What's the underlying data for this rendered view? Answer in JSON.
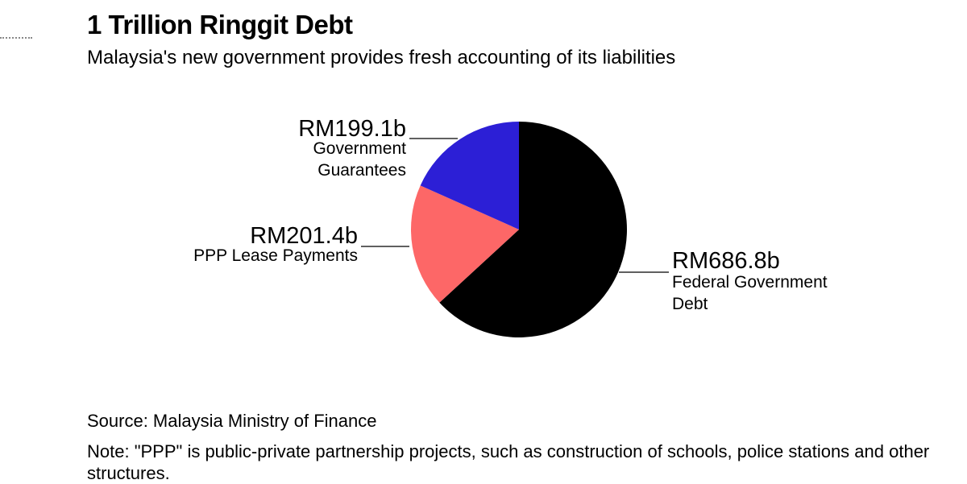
{
  "title": "1 Trillion Ringgit Debt",
  "subtitle": "Malaysia's new government provides fresh accounting of its liabilities",
  "source": "Source: Malaysia Ministry of Finance",
  "note": "Note: \"PPP\" is public-private partnership projects, such as construction of schools, police stations and other structures.",
  "chart_data": {
    "type": "pie",
    "unit": "RM billion",
    "slices": [
      {
        "label": "Federal Government Debt",
        "label_lines": [
          "Federal Government",
          "Debt"
        ],
        "value": 686.8,
        "value_label": "RM686.8b",
        "color": "#000000",
        "label_side": "right"
      },
      {
        "label": "PPP Lease Payments",
        "label_lines": [
          "PPP Lease Payments"
        ],
        "value": 201.4,
        "value_label": "RM201.4b",
        "color": "#fd6767",
        "label_side": "left"
      },
      {
        "label": "Government Guarantees",
        "label_lines": [
          "Government",
          "Guarantees"
        ],
        "value": 199.1,
        "value_label": "RM199.1b",
        "color": "#2c1fd6",
        "label_side": "left"
      }
    ],
    "start": "12 o'clock",
    "direction": "clockwise"
  }
}
